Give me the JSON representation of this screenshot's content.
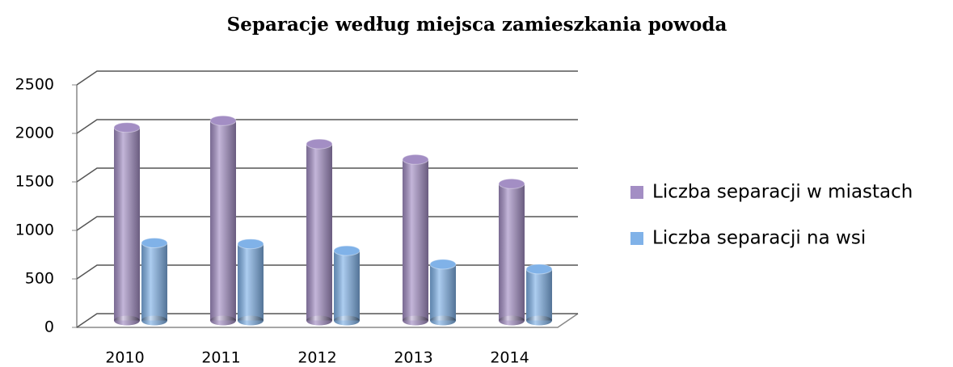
{
  "chart_data": {
    "type": "bar3d",
    "title": "Separacje według miejsca zamieszkania powoda",
    "categories": [
      "2010",
      "2011",
      "2012",
      "2013",
      "2014"
    ],
    "series": [
      {
        "name": "Liczba separacji w miastach",
        "color": "#a38ec4",
        "values": [
          1990,
          2060,
          1820,
          1660,
          1410
        ]
      },
      {
        "name": "Liczba separacji na wsi",
        "color": "#80b2e8",
        "values": [
          800,
          790,
          720,
          580,
          530
        ]
      }
    ],
    "ylim": [
      0,
      2500
    ],
    "yticks": [
      0,
      500,
      1000,
      1500,
      2000,
      2500
    ],
    "grid": true,
    "legend": "right"
  }
}
